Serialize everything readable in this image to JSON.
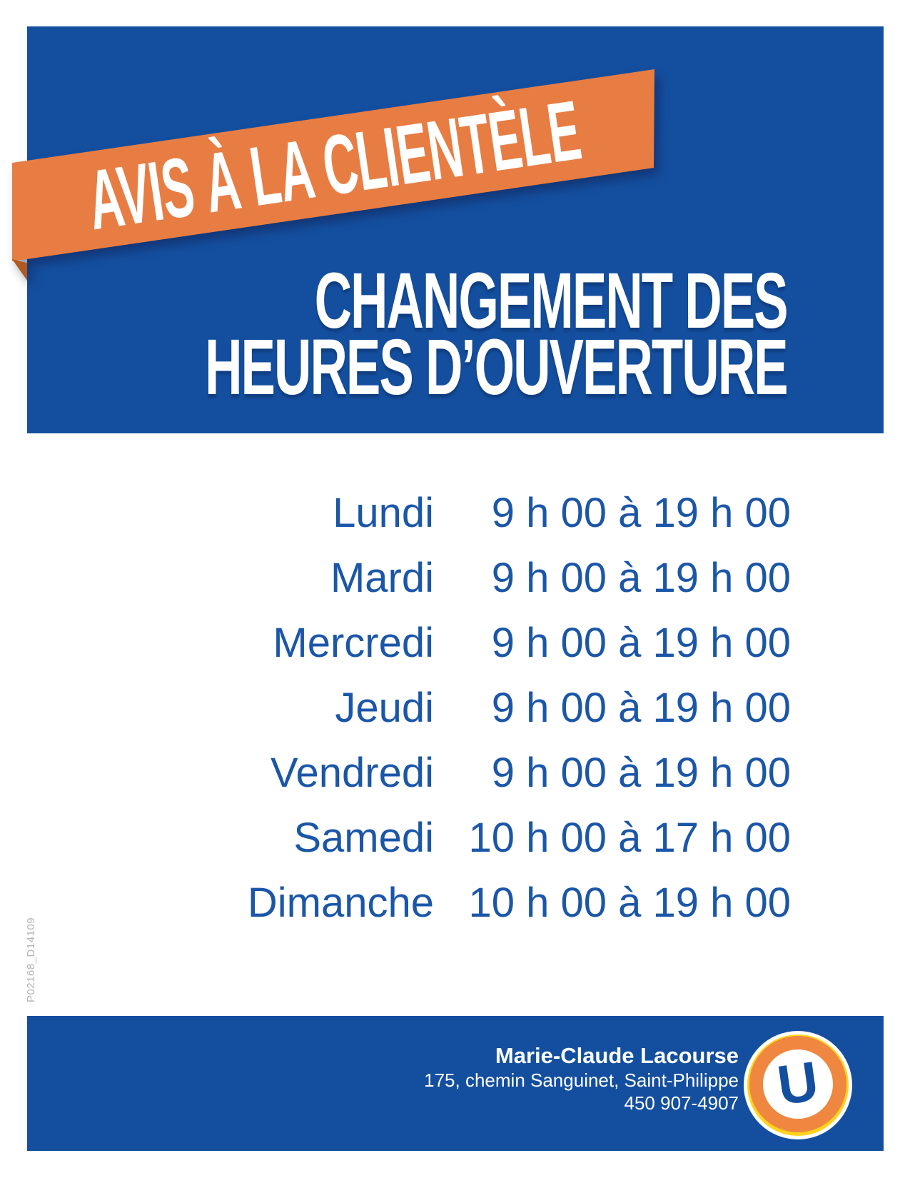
{
  "colors": {
    "panel_blue": "#144f9f",
    "schedule_text_blue": "#1b56a8",
    "ribbon_orange": "#e87d43",
    "ribbon_fold_orange": "#b05a20",
    "logo_orange": "#ef8740",
    "logo_yellow": "#ffd41c",
    "code_gray": "#b0b2b4",
    "text_white": "#ffffff"
  },
  "header": {
    "ribbon_label": "AVIS À LA CLIENTÈLE",
    "title_line1": "CHANGEMENT DES",
    "title_line2": "HEURES D’OUVERTURE"
  },
  "schedule": {
    "rows": [
      {
        "day": "Lundi",
        "hours": "9 h 00 à 19 h 00"
      },
      {
        "day": "Mardi",
        "hours": "9 h 00 à 19 h 00"
      },
      {
        "day": "Mercredi",
        "hours": "9 h 00 à 19 h 00"
      },
      {
        "day": "Jeudi",
        "hours": "9 h 00 à 19 h 00"
      },
      {
        "day": "Vendredi",
        "hours": "9 h 00 à 19 h 00"
      },
      {
        "day": "Samedi",
        "hours": "10 h 00 à 17 h 00"
      },
      {
        "day": "Dimanche",
        "hours": "10 h 00 à 19 h 00"
      }
    ]
  },
  "footer": {
    "name": "Marie-Claude Lacourse",
    "address": "175, chemin Sanguinet, Saint-Philippe",
    "phone": "450 907-4907",
    "logo_letter": "U"
  },
  "side_code": "P02168_D14109"
}
